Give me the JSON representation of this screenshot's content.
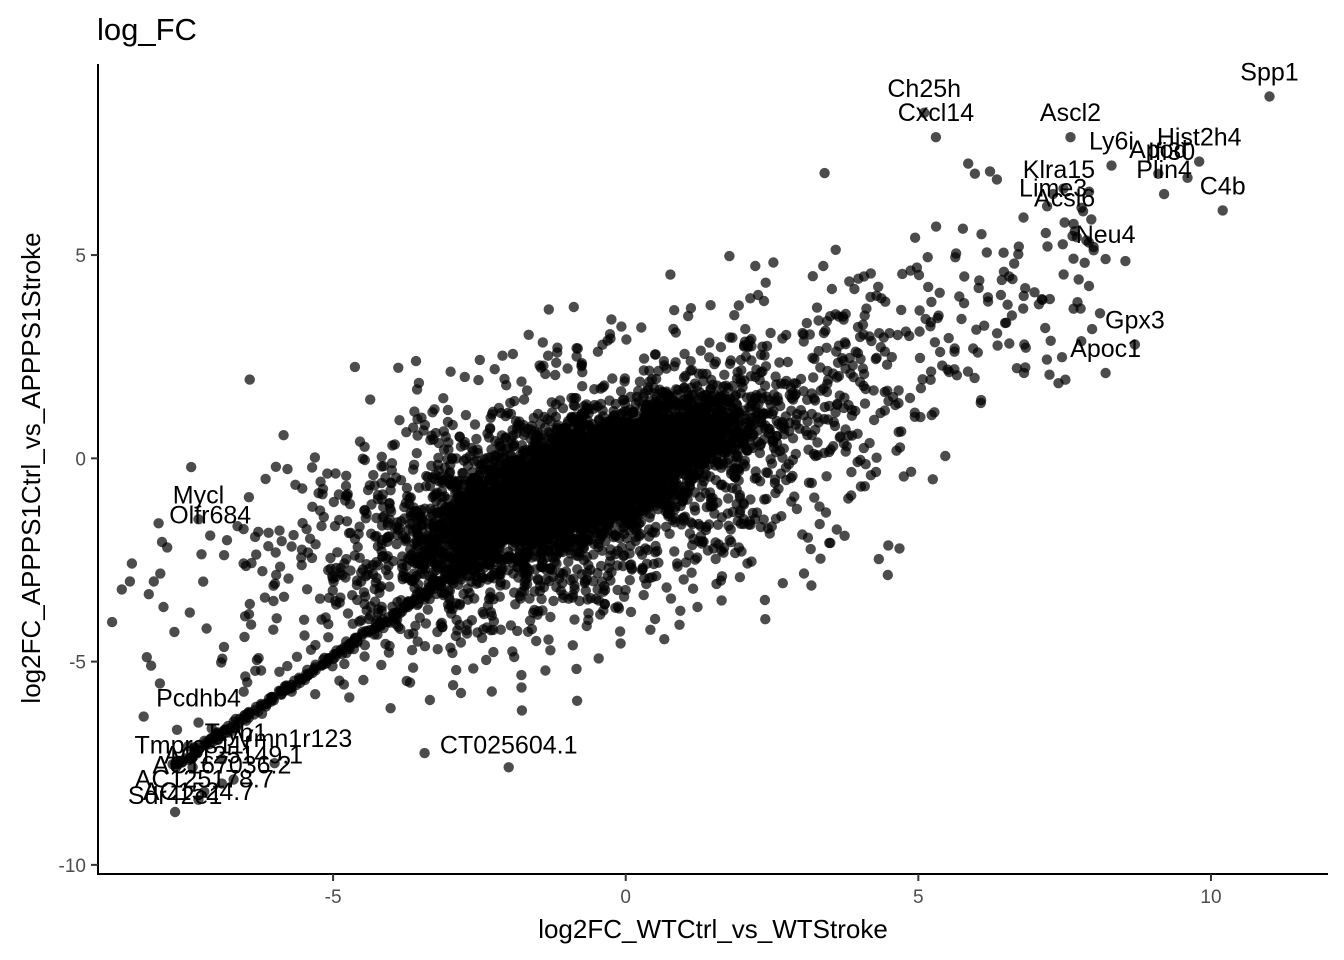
{
  "chart_data": {
    "type": "scatter",
    "title": "log_FC",
    "xlabel": "log2FC_WTCtrl_vs_WTStroke",
    "ylabel": "log2FC_APPPS1Ctrl_vs_APPPS1Stroke",
    "xlim": [
      -9.0,
      12.0
    ],
    "ylim": [
      -10.2,
      9.7
    ],
    "xticks": [
      -5,
      0,
      5,
      10
    ],
    "yticks": [
      -10,
      -5,
      0,
      5
    ],
    "xtick_labels": [
      "-5",
      "0",
      "5",
      "10"
    ],
    "ytick_labels": [
      "-10",
      "-5",
      "0",
      "5"
    ],
    "grid": false,
    "legend": "none",
    "point_color": "#000000",
    "point_opacity": 0.7,
    "labeled_points": [
      {
        "label": "Spp1",
        "x": 11.0,
        "y": 8.9
      },
      {
        "label": "Ch25h",
        "x": 5.1,
        "y": 8.5
      },
      {
        "label": "Cxcl14",
        "x": 5.3,
        "y": 7.9
      },
      {
        "label": "Ascl2",
        "x": 7.6,
        "y": 7.9
      },
      {
        "label": "Ly6i",
        "x": 8.3,
        "y": 7.2
      },
      {
        "label": "Apod",
        "x": 9.1,
        "y": 7.0
      },
      {
        "label": "Hist2h4",
        "x": 9.8,
        "y": 7.3
      },
      {
        "label": "Ifi30",
        "x": 9.6,
        "y": 6.9
      },
      {
        "label": "Plin4",
        "x": 9.2,
        "y": 6.5
      },
      {
        "label": "C4b",
        "x": 10.2,
        "y": 6.1
      },
      {
        "label": "Klra15",
        "x": 7.3,
        "y": 6.5
      },
      {
        "label": "Lime3",
        "x": 7.2,
        "y": 6.2
      },
      {
        "label": "Acsl6",
        "x": 7.5,
        "y": 5.8
      },
      {
        "label": "Neu4",
        "x": 8.2,
        "y": 4.9
      },
      {
        "label": "Gpx3",
        "x": 8.7,
        "y": 2.8
      },
      {
        "label": "Apoc1",
        "x": 8.2,
        "y": 2.1
      },
      {
        "label": "Mycl",
        "x": -7.3,
        "y": -1.5
      },
      {
        "label": "Olfr684",
        "x": -7.1,
        "y": -1.9
      },
      {
        "label": "Pcdhb4",
        "x": -7.3,
        "y": -6.5
      },
      {
        "label": "Tmprss11f",
        "x": -7.4,
        "y": -7.6
      },
      {
        "label": "Ttyh1",
        "x": -6.9,
        "y": -7.4
      },
      {
        "label": "Vmn1r123",
        "x": -6.0,
        "y": -7.5
      },
      {
        "label": "AC125149.1",
        "x": -6.7,
        "y": -7.9
      },
      {
        "label": "AC167036.2",
        "x": -6.9,
        "y": -8.0
      },
      {
        "label": "AC125178.7",
        "x": -7.2,
        "y": -8.2
      },
      {
        "label": "AC1524.7",
        "x": -7.3,
        "y": -8.4
      },
      {
        "label": "Sdr42e1",
        "x": -7.7,
        "y": -8.7
      },
      {
        "label": "CT025604.1",
        "x": -2.0,
        "y": -7.6
      }
    ]
  },
  "display_labels": [
    "Spp1",
    "Ch25h",
    "Cxcl14",
    "Ascl2",
    "Ly6i",
    "Apod",
    "Hist2h4",
    "Ifi30",
    "Plin4",
    "C4b",
    "Klra15",
    "Lime3",
    "Acsl6",
    "Neu4",
    "Gpx3",
    "Apoc1",
    "Mycl",
    "Olfr684",
    "Pcdhb4",
    "Tmprss11f",
    "Ttyh1",
    "Vmn1r123",
    "AC125149.1",
    "AC167036.2",
    "AC125178.7",
    "AC1524.7",
    "Sdr42e1",
    "CT025604.1"
  ]
}
